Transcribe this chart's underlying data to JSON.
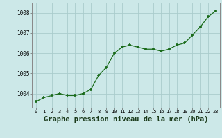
{
  "x": [
    0,
    1,
    2,
    3,
    4,
    5,
    6,
    7,
    8,
    9,
    10,
    11,
    12,
    13,
    14,
    15,
    16,
    17,
    18,
    19,
    20,
    21,
    22,
    23
  ],
  "y": [
    1003.6,
    1003.8,
    1003.9,
    1004.0,
    1003.9,
    1003.9,
    1004.0,
    1004.2,
    1004.9,
    1005.3,
    1006.0,
    1006.3,
    1006.4,
    1006.3,
    1006.2,
    1006.2,
    1006.1,
    1006.2,
    1006.4,
    1006.5,
    1006.9,
    1007.3,
    1007.8,
    1008.1
  ],
  "line_color": "#1a6b1a",
  "marker_color": "#1a6b1a",
  "background_color": "#cce8e8",
  "grid_color": "#aacccc",
  "xlabel": "Graphe pression niveau de la mer (hPa)",
  "xlabel_fontsize": 7.5,
  "yticks": [
    1004,
    1005,
    1006,
    1007,
    1008
  ],
  "xticks": [
    0,
    1,
    2,
    3,
    4,
    5,
    6,
    7,
    8,
    9,
    10,
    11,
    12,
    13,
    14,
    15,
    16,
    17,
    18,
    19,
    20,
    21,
    22,
    23
  ],
  "xlim": [
    -0.5,
    23.5
  ],
  "ylim": [
    1003.3,
    1008.5
  ]
}
